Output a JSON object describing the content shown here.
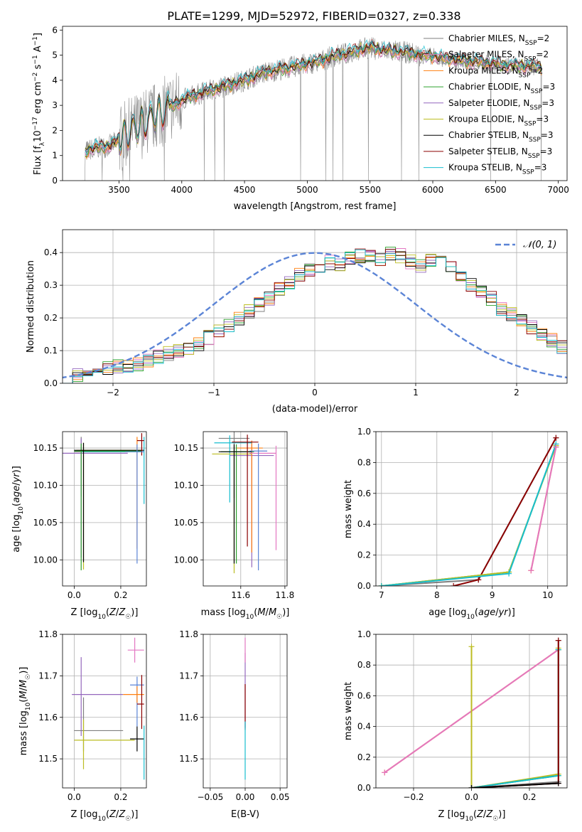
{
  "chart_data": [
    {
      "type": "line",
      "title": "PLATE=1299, MJD=52972, FIBERID=0327, z=0.338",
      "xlabel": "wavelength [Angstrom, rest frame]",
      "ylabel": "Flux [f_λ 10^-17 erg cm^-2 s^-1 A^-1]",
      "xlim": [
        3050,
        7070
      ],
      "ylim": [
        0,
        6.15
      ],
      "xticks": [
        "3500",
        "4000",
        "4500",
        "5000",
        "5500",
        "6000",
        "6500",
        "7000"
      ],
      "yticks": [
        "0",
        "1",
        "2",
        "3",
        "4",
        "5",
        "6"
      ],
      "legend_position": "top-right",
      "continuum": {
        "x": [
          3210,
          3300,
          3400,
          3500,
          3600,
          3700,
          3800,
          3900,
          4000,
          4100,
          4200,
          4300,
          4400,
          4500,
          4600,
          4700,
          4800,
          4900,
          5000,
          5100,
          5200,
          5300,
          5400,
          5500,
          5600,
          5700,
          5800,
          5900,
          6000,
          6100,
          6200,
          6300,
          6400,
          6500,
          6600,
          6700,
          6800,
          6870
        ],
        "y": [
          1.1,
          1.3,
          1.35,
          1.6,
          2.0,
          2.3,
          2.6,
          2.9,
          3.2,
          3.4,
          3.55,
          3.7,
          3.85,
          4.0,
          4.2,
          4.35,
          4.45,
          4.55,
          4.65,
          4.75,
          4.95,
          5.05,
          5.2,
          5.3,
          5.2,
          5.15,
          5.1,
          5.0,
          4.95,
          4.85,
          4.8,
          4.75,
          4.7,
          4.65,
          4.6,
          4.55,
          4.55,
          4.5
        ]
      },
      "data_spectrum_range": [
        3210,
        6870
      ],
      "series": [
        {
          "name": "Chabrier MILES, N_SSP=2",
          "color": "#7f7f7f"
        },
        {
          "name": "Salpeter MILES, N_SSP=2",
          "color": "#e377c2"
        },
        {
          "name": "Kroupa MILES, N_SSP=2",
          "color": "#ff7f0e"
        },
        {
          "name": "Chabrier ELODIE, N_SSP=3",
          "color": "#2ca02c"
        },
        {
          "name": "Salpeter ELODIE, N_SSP=3",
          "color": "#9467bd"
        },
        {
          "name": "Kroupa ELODIE, N_SSP=3",
          "color": "#bcbd22"
        },
        {
          "name": "Chabrier STELIB, N_SSP=3",
          "color": "#000000"
        },
        {
          "name": "Salpeter STELIB, N_SSP=3",
          "color": "#8b0000"
        },
        {
          "name": "Kroupa STELIB, N_SSP=3",
          "color": "#17becf"
        }
      ]
    },
    {
      "type": "line",
      "xlabel": "(data-model)/error",
      "ylabel": "Normed distribution",
      "xlim": [
        -2.5,
        2.5
      ],
      "ylim": [
        0,
        0.47
      ],
      "xticks": [
        "−2",
        "−1",
        "0",
        "1",
        "2"
      ],
      "yticks": [
        "0.0",
        "0.1",
        "0.2",
        "0.3",
        "0.4"
      ],
      "grid": true,
      "legend": "𝒩(0, 1)",
      "legend_position": "top-right",
      "gaussian": {
        "mean": 0,
        "sigma": 1,
        "color": "#5b84d6"
      },
      "histogram": {
        "bin_width": 0.1,
        "x_start": -2.5,
        "values": [
          0.02,
          0.025,
          0.03,
          0.04,
          0.045,
          0.05,
          0.055,
          0.06,
          0.07,
          0.08,
          0.09,
          0.1,
          0.11,
          0.12,
          0.14,
          0.16,
          0.18,
          0.2,
          0.22,
          0.24,
          0.26,
          0.29,
          0.31,
          0.33,
          0.35,
          0.36,
          0.37,
          0.36,
          0.38,
          0.39,
          0.39,
          0.38,
          0.4,
          0.39,
          0.37,
          0.36,
          0.38,
          0.37,
          0.35,
          0.33,
          0.3,
          0.28,
          0.26,
          0.23,
          0.21,
          0.19,
          0.17,
          0.15,
          0.13,
          0.11
        ],
        "series_colors": [
          "#7f7f7f",
          "#e377c2",
          "#ff7f0e",
          "#2ca02c",
          "#9467bd",
          "#bcbd22",
          "#000000",
          "#8b0000",
          "#17becf"
        ]
      }
    },
    {
      "type": "scatter",
      "xlabel": "Z [log10(Z/Z☉)]",
      "ylabel": "age [log10(age/yr)]",
      "xlim": [
        -0.05,
        0.31
      ],
      "ylim": [
        9.965,
        10.172
      ],
      "xticks": [
        "0.0",
        "0.2"
      ],
      "yticks": [
        "10.00",
        "10.05",
        "10.10",
        "10.15"
      ],
      "grid": true,
      "points": [
        {
          "x": 0.03,
          "y": 10.145,
          "xerr": [
            0.03,
            0.27
          ],
          "yerr": [
            0.06,
            0.02
          ],
          "color": "#7f7f7f"
        },
        {
          "x": 0.03,
          "y": 10.143,
          "xerr": [
            0.08,
            0.2
          ],
          "yerr": [
            0.14,
            0.02
          ],
          "color": "#9467bd"
        },
        {
          "x": 0.27,
          "y": 10.145,
          "xerr": [
            0.24,
            0.03
          ],
          "yerr": [
            0.13,
            0.02
          ],
          "color": "#ff7f0e"
        },
        {
          "x": 0.3,
          "y": 10.145,
          "xerr": [
            0.27,
            0.0
          ],
          "yerr": [
            0.07,
            0.02
          ],
          "color": "#17becf"
        },
        {
          "x": 0.04,
          "y": 10.147,
          "xerr": [
            0.03,
            0.25
          ],
          "yerr": [
            0.16,
            0.01
          ],
          "color": "#bcbd22"
        },
        {
          "x": 0.03,
          "y": 10.146,
          "xerr": [
            0.03,
            0.26
          ],
          "yerr": [
            0.16,
            0.01
          ],
          "color": "#2ca02c"
        },
        {
          "x": 0.04,
          "y": 10.147,
          "xerr": [
            0.04,
            0.26
          ],
          "yerr": [
            0.15,
            0.01
          ],
          "color": "#000000"
        },
        {
          "x": 0.29,
          "y": 10.16,
          "xerr": [
            0.02,
            0.01
          ],
          "yerr": [
            0.02,
            0.01
          ],
          "color": "#8b0000"
        },
        {
          "x": 0.27,
          "y": 10.145,
          "xerr": [
            0.05,
            0.03
          ],
          "yerr": [
            0.15,
            0.01
          ],
          "color": "#5b84d6"
        }
      ]
    },
    {
      "type": "scatter",
      "xlabel": "mass [log10(M/M☉)]",
      "ylim": [
        9.965,
        10.172
      ],
      "xlim": [
        11.43,
        11.81
      ],
      "xticks": [
        "11.6",
        "11.8"
      ],
      "yticks": [
        "10.00",
        "10.05",
        "10.10",
        "10.15"
      ],
      "grid": true,
      "points": [
        {
          "x": 11.57,
          "y": 10.163,
          "xerr": [
            0.07,
            0.07
          ],
          "yerr": [
            0.08,
            0.01
          ],
          "color": "#7f7f7f"
        },
        {
          "x": 11.65,
          "y": 10.14,
          "xerr": [
            0.1,
            0.1
          ],
          "yerr": [
            0.15,
            0.02
          ],
          "color": "#9467bd"
        },
        {
          "x": 11.65,
          "y": 10.15,
          "xerr": [
            0.07,
            0.05
          ],
          "yerr": [
            0.14,
            0.01
          ],
          "color": "#ff7f0e"
        },
        {
          "x": 11.55,
          "y": 10.157,
          "xerr": [
            0.07,
            0.1
          ],
          "yerr": [
            0.08,
            0.01
          ],
          "color": "#17becf"
        },
        {
          "x": 11.57,
          "y": 10.142,
          "xerr": [
            0.1,
            0.08
          ],
          "yerr": [
            0.16,
            0.01
          ],
          "color": "#bcbd22"
        },
        {
          "x": 11.58,
          "y": 10.145,
          "xerr": [
            0.07,
            0.08
          ],
          "yerr": [
            0.15,
            0.01
          ],
          "color": "#2ca02c"
        },
        {
          "x": 11.57,
          "y": 10.145,
          "xerr": [
            0.07,
            0.08
          ],
          "yerr": [
            0.15,
            0.01
          ],
          "color": "#000000"
        },
        {
          "x": 11.63,
          "y": 10.158,
          "xerr": [
            0.07,
            0.05
          ],
          "yerr": [
            0.14,
            0.01
          ],
          "color": "#8b0000"
        },
        {
          "x": 11.76,
          "y": 10.143,
          "xerr": [
            0.12,
            0.0
          ],
          "yerr": [
            0.13,
            0.01
          ],
          "color": "#e377c2"
        },
        {
          "x": 11.68,
          "y": 10.146,
          "xerr": [
            0.04,
            0.04
          ],
          "yerr": [
            0.16,
            0.01
          ],
          "color": "#5b84d6"
        }
      ]
    },
    {
      "type": "line",
      "xlabel": "age [log10(age/yr)]",
      "ylabel": "mass weight",
      "xlim": [
        6.9,
        10.35
      ],
      "ylim": [
        0,
        1.0
      ],
      "xticks": [
        "7",
        "8",
        "9",
        "10"
      ],
      "yticks": [
        "0.0",
        "0.2",
        "0.4",
        "0.6",
        "0.8",
        "1.0"
      ],
      "grid": true,
      "series": [
        {
          "color": "#7f7f7f",
          "x": [
            7.0,
            8.75,
            10.15
          ],
          "y": [
            0.0,
            0.04,
            0.96
          ]
        },
        {
          "color": "#8b0000",
          "x": [
            8.3,
            8.75,
            10.15
          ],
          "y": [
            0.0,
            0.04,
            0.96
          ]
        },
        {
          "color": "#2ca02c",
          "x": [
            7.0,
            9.3,
            10.15
          ],
          "y": [
            0.0,
            0.09,
            0.91
          ]
        },
        {
          "color": "#bcbd22",
          "x": [
            7.0,
            9.3,
            10.15
          ],
          "y": [
            0.0,
            0.09,
            0.91
          ]
        },
        {
          "color": "#17becf",
          "x": [
            7.0,
            9.3,
            10.15
          ],
          "y": [
            0.0,
            0.08,
            0.92
          ]
        },
        {
          "color": "#ff7f0e",
          "x": [
            9.7,
            10.15
          ],
          "y": [
            0.1,
            0.9
          ]
        },
        {
          "color": "#e377c2",
          "x": [
            9.7,
            10.15
          ],
          "y": [
            0.1,
            0.9
          ]
        }
      ]
    },
    {
      "type": "scatter",
      "xlabel": "Z [log10(Z/Z☉)]",
      "ylabel": "mass [log10(M/M☉)]",
      "xlim": [
        -0.05,
        0.31
      ],
      "ylim": [
        11.43,
        11.8
      ],
      "xticks": [
        "0.0",
        "0.2"
      ],
      "yticks": [
        "11.5",
        "11.6",
        "11.7",
        "11.8"
      ],
      "grid": true,
      "points": [
        {
          "x": 0.03,
          "y": 11.655,
          "xerr": [
            0.04,
            0.18
          ],
          "yerr": [
            0.1,
            0.09
          ],
          "color": "#9467bd"
        },
        {
          "x": 0.26,
          "y": 11.762,
          "xerr": [
            0.03,
            0.04
          ],
          "yerr": [
            0.03,
            0.03
          ],
          "color": "#e377c2"
        },
        {
          "x": 0.27,
          "y": 11.678,
          "xerr": [
            0.03,
            0.03
          ],
          "yerr": [
            0.1,
            0.02
          ],
          "color": "#5b84d6"
        },
        {
          "x": 0.27,
          "y": 11.655,
          "xerr": [
            0.06,
            0.03
          ],
          "yerr": [
            0.02,
            0.02
          ],
          "color": "#ff7f0e"
        },
        {
          "x": 0.29,
          "y": 11.632,
          "xerr": [
            0.02,
            0.01
          ],
          "yerr": [
            0.06,
            0.07
          ],
          "color": "#8b0000"
        },
        {
          "x": 0.04,
          "y": 11.568,
          "xerr": [
            0.04,
            0.17
          ],
          "yerr": [
            0.05,
            0.08
          ],
          "color": "#7f7f7f"
        },
        {
          "x": 0.27,
          "y": 11.548,
          "xerr": [
            0.03,
            0.03
          ],
          "yerr": [
            0.03,
            0.03
          ],
          "color": "#000000"
        },
        {
          "x": 0.04,
          "y": 11.545,
          "xerr": [
            0.04,
            0.22
          ],
          "yerr": [
            0.07,
            0.05
          ],
          "color": "#bcbd22"
        },
        {
          "x": 0.3,
          "y": 11.56,
          "xerr": [
            0.0,
            0.0
          ],
          "yerr": [
            0.11,
            0.02
          ],
          "color": "#17becf"
        }
      ]
    },
    {
      "type": "scatter",
      "xlabel": "E(B-V)",
      "xlim": [
        -0.06,
        0.06
      ],
      "ylim": [
        11.43,
        11.8
      ],
      "xticks": [
        "−0.05",
        "0.00",
        "0.05"
      ],
      "yticks": [
        "11.5",
        "11.6",
        "11.7",
        "11.8"
      ],
      "grid": true,
      "points": [
        {
          "x": 0.0,
          "y": 11.655,
          "yerr": [
            0.08,
            0.1
          ],
          "color": "#9467bd"
        },
        {
          "x": 0.0,
          "y": 11.762,
          "yerr": [
            0.03,
            0.03
          ],
          "color": "#e377c2"
        },
        {
          "x": 0.0,
          "y": 11.63,
          "yerr": [
            0.06,
            0.05
          ],
          "color": "#8b0000"
        },
        {
          "x": 0.0,
          "y": 11.56,
          "yerr": [
            0.11,
            0.03
          ],
          "color": "#17becf"
        }
      ]
    },
    {
      "type": "line",
      "xlabel": "Z [log10(Z/Z☉)]",
      "ylabel": "mass weight",
      "xlim": [
        -0.33,
        0.33
      ],
      "ylim": [
        0,
        1.0
      ],
      "xticks": [
        "−0.2",
        "0.0",
        "0.2"
      ],
      "yticks": [
        "0.0",
        "0.2",
        "0.4",
        "0.6",
        "0.8",
        "1.0"
      ],
      "grid": true,
      "series": [
        {
          "color": "#ff7f0e",
          "x": [
            -0.3,
            0.3
          ],
          "y": [
            0.1,
            0.9
          ]
        },
        {
          "color": "#e377c2",
          "x": [
            -0.3,
            0.3
          ],
          "y": [
            0.1,
            0.9
          ]
        },
        {
          "color": "#bcbd22",
          "x": [
            0.0,
            0.0,
            0.3,
            0.3
          ],
          "y": [
            0.92,
            0.0,
            0.09,
            0.91
          ]
        },
        {
          "color": "#2ca02c",
          "x": [
            0.0,
            0.3,
            0.3
          ],
          "y": [
            0.0,
            0.08,
            0.9
          ]
        },
        {
          "color": "#17becf",
          "x": [
            0.0,
            0.3,
            0.3
          ],
          "y": [
            0.0,
            0.08,
            0.9
          ]
        },
        {
          "color": "#7f7f7f",
          "x": [
            0.0,
            0.3,
            0.3
          ],
          "y": [
            0.0,
            0.04,
            0.96
          ]
        },
        {
          "color": "#8b0000",
          "x": [
            0.0,
            0.3,
            0.3
          ],
          "y": [
            0.0,
            0.03,
            0.96
          ]
        },
        {
          "color": "#000000",
          "x": [
            0.0,
            0.3
          ],
          "y": [
            0.0,
            0.03
          ]
        }
      ]
    }
  ]
}
